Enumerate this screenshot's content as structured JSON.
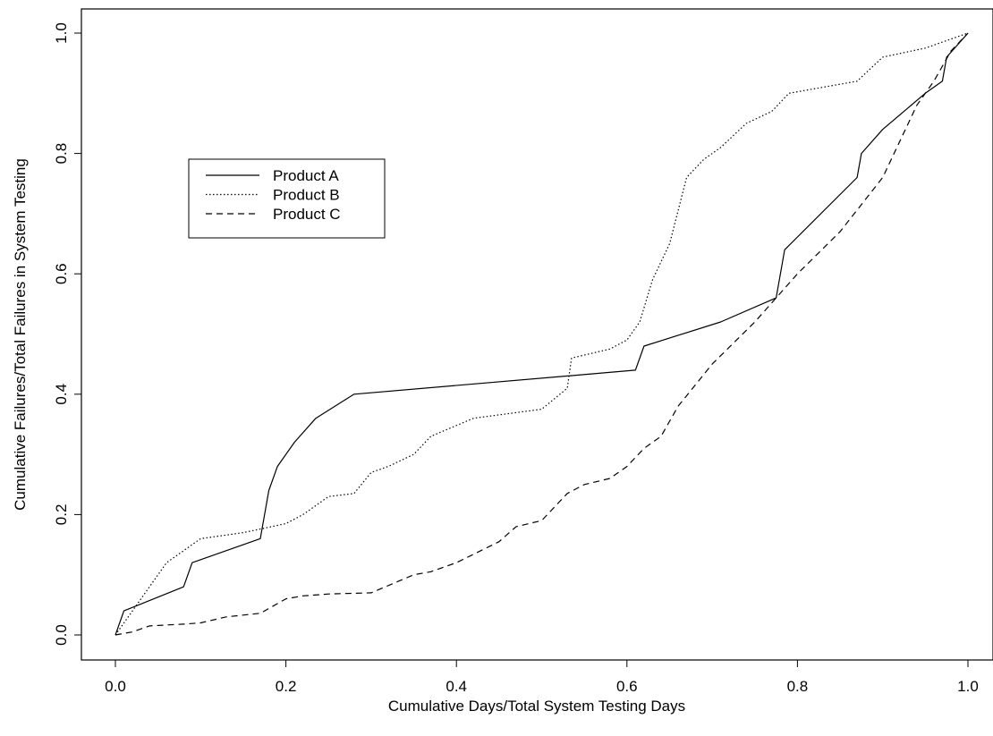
{
  "chart_data": {
    "type": "line",
    "title": "",
    "xlabel": "Cumulative Days/Total System Testing Days",
    "ylabel": "Cumulative Failures/Total Failures in System Testing",
    "xlim": [
      0.0,
      1.0
    ],
    "ylim": [
      0.0,
      1.0
    ],
    "xticks": [
      "0.0",
      "0.2",
      "0.4",
      "0.6",
      "0.8",
      "1.0"
    ],
    "yticks": [
      "0.0",
      "0.2",
      "0.4",
      "0.6",
      "0.8",
      "1.0"
    ],
    "grid": false,
    "legend_position": "upper-left",
    "series": [
      {
        "name": "Product A",
        "line_style": "solid",
        "color": "#000000",
        "x": [
          0.0,
          0.01,
          0.08,
          0.09,
          0.17,
          0.18,
          0.19,
          0.21,
          0.235,
          0.28,
          0.61,
          0.62,
          0.71,
          0.775,
          0.785,
          0.87,
          0.875,
          0.9,
          0.95,
          0.97,
          0.975,
          1.0
        ],
        "y": [
          0.0,
          0.04,
          0.08,
          0.12,
          0.16,
          0.24,
          0.28,
          0.32,
          0.36,
          0.4,
          0.44,
          0.48,
          0.52,
          0.56,
          0.64,
          0.76,
          0.8,
          0.84,
          0.9,
          0.92,
          0.96,
          1.0
        ]
      },
      {
        "name": "Product B",
        "line_style": "dotted",
        "color": "#000000",
        "x": [
          0.0,
          0.02,
          0.04,
          0.06,
          0.08,
          0.1,
          0.15,
          0.2,
          0.22,
          0.25,
          0.28,
          0.3,
          0.32,
          0.35,
          0.37,
          0.42,
          0.5,
          0.53,
          0.535,
          0.58,
          0.6,
          0.615,
          0.63,
          0.65,
          0.67,
          0.69,
          0.71,
          0.74,
          0.77,
          0.79,
          0.87,
          0.9,
          0.95,
          0.97,
          0.98,
          1.0
        ],
        "y": [
          0.0,
          0.04,
          0.08,
          0.12,
          0.14,
          0.16,
          0.17,
          0.185,
          0.2,
          0.23,
          0.235,
          0.27,
          0.28,
          0.3,
          0.33,
          0.36,
          0.375,
          0.41,
          0.46,
          0.475,
          0.49,
          0.52,
          0.59,
          0.65,
          0.76,
          0.79,
          0.81,
          0.85,
          0.87,
          0.9,
          0.92,
          0.96,
          0.975,
          0.985,
          0.99,
          1.0
        ]
      },
      {
        "name": "Product C",
        "line_style": "dashed",
        "color": "#000000",
        "x": [
          0.0,
          0.02,
          0.04,
          0.08,
          0.1,
          0.13,
          0.17,
          0.2,
          0.22,
          0.25,
          0.3,
          0.35,
          0.37,
          0.4,
          0.45,
          0.47,
          0.5,
          0.53,
          0.55,
          0.58,
          0.6,
          0.62,
          0.64,
          0.66,
          0.7,
          0.75,
          0.8,
          0.85,
          0.9,
          0.94,
          0.96,
          0.98,
          1.0
        ],
        "y": [
          0.0,
          0.005,
          0.015,
          0.018,
          0.02,
          0.03,
          0.036,
          0.06,
          0.065,
          0.068,
          0.07,
          0.1,
          0.105,
          0.12,
          0.155,
          0.18,
          0.19,
          0.235,
          0.25,
          0.26,
          0.28,
          0.31,
          0.33,
          0.38,
          0.45,
          0.52,
          0.6,
          0.67,
          0.76,
          0.88,
          0.92,
          0.97,
          1.0
        ]
      }
    ]
  }
}
